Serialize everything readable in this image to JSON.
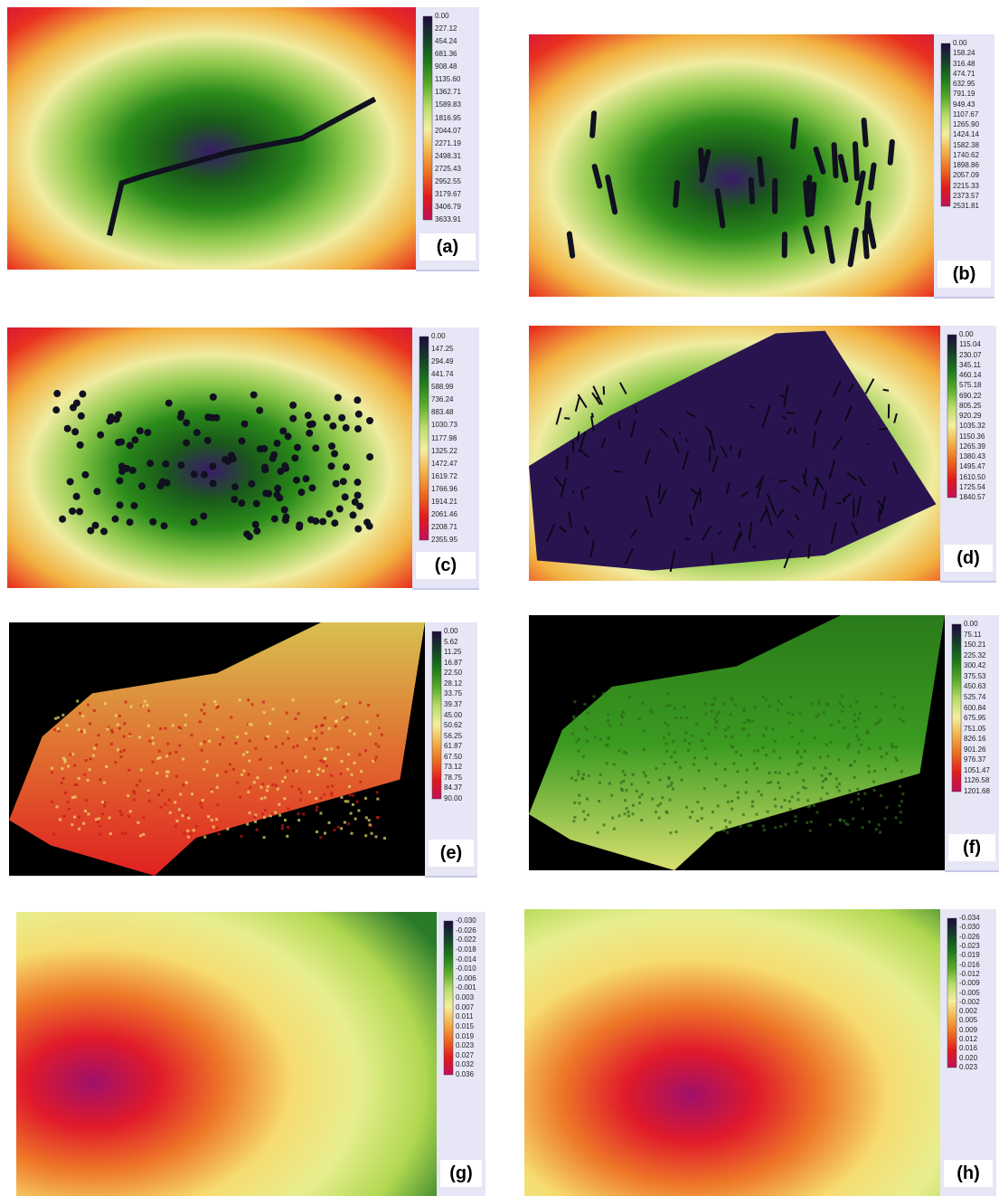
{
  "panels": [
    {
      "label": "(a)",
      "legend": [
        "0.00",
        "227.12",
        "454.24",
        "681.36",
        "908.48",
        "1135.60",
        "1362.71",
        "1589.83",
        "1816.95",
        "2044.07",
        "2271.19",
        "2498.31",
        "2725.43",
        "2952.55",
        "3179.67",
        "3406.79",
        "3633.91"
      ]
    },
    {
      "label": "(b)",
      "legend": [
        "0.00",
        "158.24",
        "316.48",
        "474.71",
        "632.95",
        "791.19",
        "949.43",
        "1107.67",
        "1265.90",
        "1424.14",
        "1582.38",
        "1740.62",
        "1898.86",
        "2057.09",
        "2215.33",
        "2373.57",
        "2531.81"
      ]
    },
    {
      "label": "(c)",
      "legend": [
        "0.00",
        "147.25",
        "294.49",
        "441.74",
        "588.99",
        "736.24",
        "883.48",
        "1030.73",
        "1177.98",
        "1325.22",
        "1472.47",
        "1619.72",
        "1766.96",
        "1914.21",
        "2061.46",
        "2208.71",
        "2355.95"
      ]
    },
    {
      "label": "(d)",
      "legend": [
        "0.00",
        "115.04",
        "230.07",
        "345.11",
        "460.14",
        "575.18",
        "690.22",
        "805.25",
        "920.29",
        "1035.32",
        "1150.36",
        "1265.39",
        "1380.43",
        "1495.47",
        "1610.50",
        "1725.54",
        "1840.57"
      ]
    },
    {
      "label": "(e)",
      "legend": [
        "0.00",
        "5.62",
        "11.25",
        "16.87",
        "22.50",
        "28.12",
        "33.75",
        "39.37",
        "45.00",
        "50.62",
        "56.25",
        "61.87",
        "67.50",
        "73.12",
        "78.75",
        "84.37",
        "90.00"
      ]
    },
    {
      "label": "(f)",
      "legend": [
        "0.00",
        "75.11",
        "150.21",
        "225.32",
        "300.42",
        "375.53",
        "450.63",
        "525.74",
        "600.84",
        "675.95",
        "751.05",
        "826.16",
        "901.26",
        "976.37",
        "1051.47",
        "1126.58",
        "1201.68"
      ]
    },
    {
      "label": "(g)",
      "legend": [
        "-0.030",
        "-0.026",
        "-0.022",
        "-0.018",
        "-0.014",
        "-0.010",
        "-0.006",
        "-0.001",
        "0.003",
        "0.007",
        "0.011",
        "0.015",
        "0.019",
        "0.023",
        "0.027",
        "0.032",
        "0.036"
      ]
    },
    {
      "label": "(h)",
      "legend": [
        "-0.034",
        "-0.030",
        "-0.026",
        "-0.023",
        "-0.019",
        "-0.016",
        "-0.012",
        "-0.009",
        "-0.005",
        "-0.002",
        "0.002",
        "0.005",
        "0.009",
        "0.012",
        "0.016",
        "0.020",
        "0.023"
      ]
    }
  ]
}
